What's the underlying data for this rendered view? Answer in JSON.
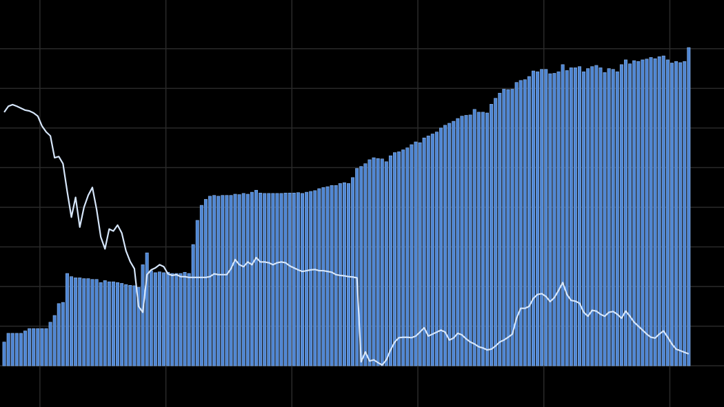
{
  "chart_data": {
    "type": "bar",
    "x": [
      1,
      2,
      3,
      4,
      5,
      6,
      7,
      8,
      9,
      10,
      11,
      12,
      13,
      14,
      15,
      16,
      17,
      18,
      19,
      20,
      21,
      22,
      23,
      24,
      25,
      26,
      27,
      28,
      29,
      30,
      31,
      32,
      33,
      34,
      35,
      36,
      37,
      38,
      39,
      40,
      41,
      42,
      43,
      44,
      45,
      46,
      47,
      48,
      49,
      50,
      51,
      52,
      53,
      54,
      55,
      56,
      57,
      58,
      59,
      60,
      61,
      62,
      63,
      64,
      65,
      66,
      67,
      68,
      69,
      70,
      71,
      72,
      73,
      74,
      75,
      76,
      77,
      78,
      79,
      80,
      81,
      82,
      83,
      84,
      85,
      86,
      87,
      88,
      89,
      90,
      91,
      92,
      93,
      94,
      95,
      96,
      97,
      98,
      99,
      100,
      101,
      102,
      103,
      104,
      105,
      106,
      107,
      108,
      109,
      110,
      111,
      112,
      113,
      114,
      115,
      116,
      117,
      118,
      119,
      120,
      121,
      122,
      123,
      124,
      125,
      126,
      127,
      128,
      129,
      130,
      131,
      132,
      133,
      134,
      135,
      136,
      137,
      138,
      139,
      140,
      141,
      142,
      143,
      144,
      145,
      146,
      147,
      148,
      149,
      150,
      151,
      152,
      153,
      154,
      155,
      156,
      157,
      158,
      159,
      160,
      161,
      162,
      163,
      164
    ],
    "series": [
      {
        "type": "bar",
        "color": "#4f86d3",
        "values": [
          0.6,
          0.82,
          0.82,
          0.82,
          0.82,
          0.88,
          0.94,
          0.94,
          0.94,
          0.94,
          0.94,
          1.1,
          1.27,
          1.57,
          1.6,
          2.33,
          2.25,
          2.22,
          2.22,
          2.2,
          2.2,
          2.18,
          2.18,
          2.1,
          2.15,
          2.12,
          2.12,
          2.1,
          2.08,
          2.05,
          2.03,
          2.02,
          1.98,
          2.55,
          2.85,
          2.4,
          2.35,
          2.37,
          2.35,
          2.36,
          2.33,
          2.33,
          2.33,
          2.36,
          2.33,
          3.06,
          3.67,
          4.05,
          4.2,
          4.28,
          4.3,
          4.28,
          4.3,
          4.3,
          4.3,
          4.33,
          4.32,
          4.35,
          4.33,
          4.38,
          4.43,
          4.36,
          4.35,
          4.35,
          4.35,
          4.35,
          4.35,
          4.36,
          4.36,
          4.36,
          4.37,
          4.35,
          4.38,
          4.4,
          4.42,
          4.47,
          4.5,
          4.52,
          4.55,
          4.55,
          4.6,
          4.62,
          4.6,
          4.75,
          4.98,
          5.03,
          5.1,
          5.2,
          5.25,
          5.23,
          5.22,
          5.15,
          5.3,
          5.38,
          5.4,
          5.45,
          5.5,
          5.58,
          5.65,
          5.63,
          5.75,
          5.8,
          5.85,
          5.9,
          6.0,
          6.07,
          6.12,
          6.17,
          6.24,
          6.3,
          6.32,
          6.33,
          6.47,
          6.4,
          6.4,
          6.38,
          6.6,
          6.75,
          6.88,
          6.98,
          6.97,
          6.98,
          7.15,
          7.2,
          7.22,
          7.3,
          7.44,
          7.42,
          7.48,
          7.48,
          7.37,
          7.38,
          7.42,
          7.6,
          7.45,
          7.52,
          7.52,
          7.55,
          7.42,
          7.5,
          7.55,
          7.58,
          7.52,
          7.4,
          7.5,
          7.48,
          7.42,
          7.6,
          7.72,
          7.62,
          7.7,
          7.68,
          7.72,
          7.74,
          7.78,
          7.75,
          7.8,
          7.82,
          7.72,
          7.64,
          7.68,
          7.65,
          7.68,
          8.03
        ]
      },
      {
        "type": "line",
        "color": "#d6e6fa",
        "values": [
          6.4,
          6.55,
          6.59,
          6.55,
          6.5,
          6.45,
          6.43,
          6.38,
          6.3,
          6.05,
          5.9,
          5.8,
          5.25,
          5.28,
          5.1,
          4.4,
          3.75,
          4.25,
          3.5,
          4.0,
          4.3,
          4.5,
          3.95,
          3.25,
          2.95,
          3.45,
          3.4,
          3.55,
          3.35,
          2.9,
          2.63,
          2.45,
          1.5,
          1.35,
          2.3,
          2.42,
          2.47,
          2.55,
          2.5,
          2.32,
          2.28,
          2.3,
          2.25,
          2.25,
          2.23,
          2.23,
          2.23,
          2.23,
          2.23,
          2.25,
          2.32,
          2.3,
          2.3,
          2.3,
          2.45,
          2.68,
          2.55,
          2.5,
          2.62,
          2.55,
          2.73,
          2.62,
          2.62,
          2.6,
          2.55,
          2.6,
          2.62,
          2.6,
          2.52,
          2.47,
          2.42,
          2.38,
          2.4,
          2.42,
          2.43,
          2.4,
          2.4,
          2.38,
          2.36,
          2.3,
          2.28,
          2.27,
          2.25,
          2.24,
          2.22,
          0.1,
          0.35,
          0.12,
          0.15,
          0.08,
          0.02,
          0.15,
          0.4,
          0.6,
          0.71,
          0.72,
          0.72,
          0.71,
          0.75,
          0.85,
          0.96,
          0.75,
          0.8,
          0.85,
          0.9,
          0.85,
          0.65,
          0.7,
          0.82,
          0.78,
          0.68,
          0.6,
          0.55,
          0.48,
          0.45,
          0.4,
          0.42,
          0.5,
          0.6,
          0.65,
          0.72,
          0.8,
          1.2,
          1.45,
          1.45,
          1.5,
          1.7,
          1.8,
          1.82,
          1.75,
          1.62,
          1.72,
          1.9,
          2.1,
          1.8,
          1.65,
          1.63,
          1.58,
          1.35,
          1.25,
          1.4,
          1.38,
          1.3,
          1.25,
          1.35,
          1.37,
          1.3,
          1.2,
          1.38,
          1.25,
          1.1,
          1.0,
          0.9,
          0.8,
          0.72,
          0.7,
          0.8,
          0.88,
          0.72,
          0.55,
          0.42,
          0.38,
          0.34,
          0.3
        ]
      }
    ],
    "xlim": [
      0,
      172.4
    ],
    "xticks": [
      9.5,
      39.5,
      69.5,
      99.5,
      129.5,
      159.5
    ],
    "ylim": [
      -1.04,
      9.23
    ],
    "yticks": [
      0,
      1,
      2,
      3,
      4,
      5,
      6,
      7,
      8
    ],
    "grid": true
  }
}
